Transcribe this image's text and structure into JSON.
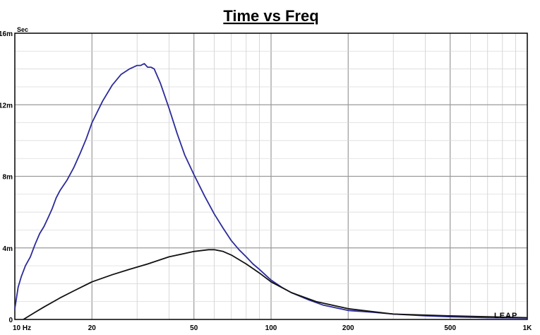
{
  "chart_data": {
    "type": "line",
    "title": "Time vs Freq",
    "ylabel": "Sec",
    "xlabel": "",
    "x_scale": "log",
    "xlim": [
      10,
      1000
    ],
    "ylim": [
      0,
      0.016
    ],
    "grid": true,
    "x_ticks": [
      {
        "value": 10,
        "label": "10  Hz"
      },
      {
        "value": 20,
        "label": "20"
      },
      {
        "value": 50,
        "label": "50"
      },
      {
        "value": 100,
        "label": "100"
      },
      {
        "value": 200,
        "label": "200"
      },
      {
        "value": 500,
        "label": "500"
      },
      {
        "value": 1000,
        "label": "1K"
      }
    ],
    "y_ticks": [
      {
        "value": 0,
        "label": "0"
      },
      {
        "value": 0.004,
        "label": "4m"
      },
      {
        "value": 0.008,
        "label": "8m"
      },
      {
        "value": 0.012,
        "label": "12m"
      },
      {
        "value": 0.016,
        "label": "16m"
      }
    ],
    "series": [
      {
        "color": "#2b2b9a",
        "x": [
          10,
          10.3,
          10.6,
          11,
          11.5,
          12,
          12.5,
          13,
          13.5,
          14,
          14.5,
          15,
          16,
          17,
          18,
          19,
          20,
          22,
          24,
          26,
          28,
          29,
          30,
          31,
          32,
          33,
          34,
          35,
          37,
          40,
          43,
          46,
          50,
          55,
          60,
          65,
          70,
          75,
          80,
          85,
          90,
          100,
          110,
          120,
          140,
          160,
          200,
          250,
          300,
          400,
          500,
          700,
          1000
        ],
        "y": [
          0.0006,
          0.0018,
          0.0024,
          0.003,
          0.0035,
          0.0042,
          0.0048,
          0.0052,
          0.0057,
          0.0062,
          0.0068,
          0.0072,
          0.0078,
          0.0085,
          0.0093,
          0.0101,
          0.011,
          0.0122,
          0.0131,
          0.0137,
          0.014,
          0.0141,
          0.0142,
          0.0142,
          0.0143,
          0.0141,
          0.0141,
          0.014,
          0.0132,
          0.0118,
          0.0104,
          0.0092,
          0.0081,
          0.0069,
          0.0059,
          0.0051,
          0.0044,
          0.0039,
          0.0035,
          0.0031,
          0.0028,
          0.0022,
          0.0018,
          0.0015,
          0.0011,
          0.0008,
          0.0005,
          0.0004,
          0.0003,
          0.0002,
          0.00015,
          0.0001,
          8e-05
        ]
      },
      {
        "color": "#111111",
        "x": [
          10.8,
          12,
          13,
          15,
          17,
          20,
          24,
          28,
          33,
          40,
          50,
          57,
          60,
          65,
          70,
          80,
          90,
          100,
          120,
          150,
          200,
          300,
          500,
          1000
        ],
        "y": [
          0,
          0.0004,
          0.0007,
          0.0012,
          0.0016,
          0.0021,
          0.0025,
          0.0028,
          0.0031,
          0.0035,
          0.0038,
          0.0039,
          0.0039,
          0.0038,
          0.0036,
          0.0031,
          0.0026,
          0.0021,
          0.0015,
          0.001,
          0.0006,
          0.0003,
          0.0002,
          0.0001
        ]
      }
    ],
    "logo_text": "LEAP"
  }
}
